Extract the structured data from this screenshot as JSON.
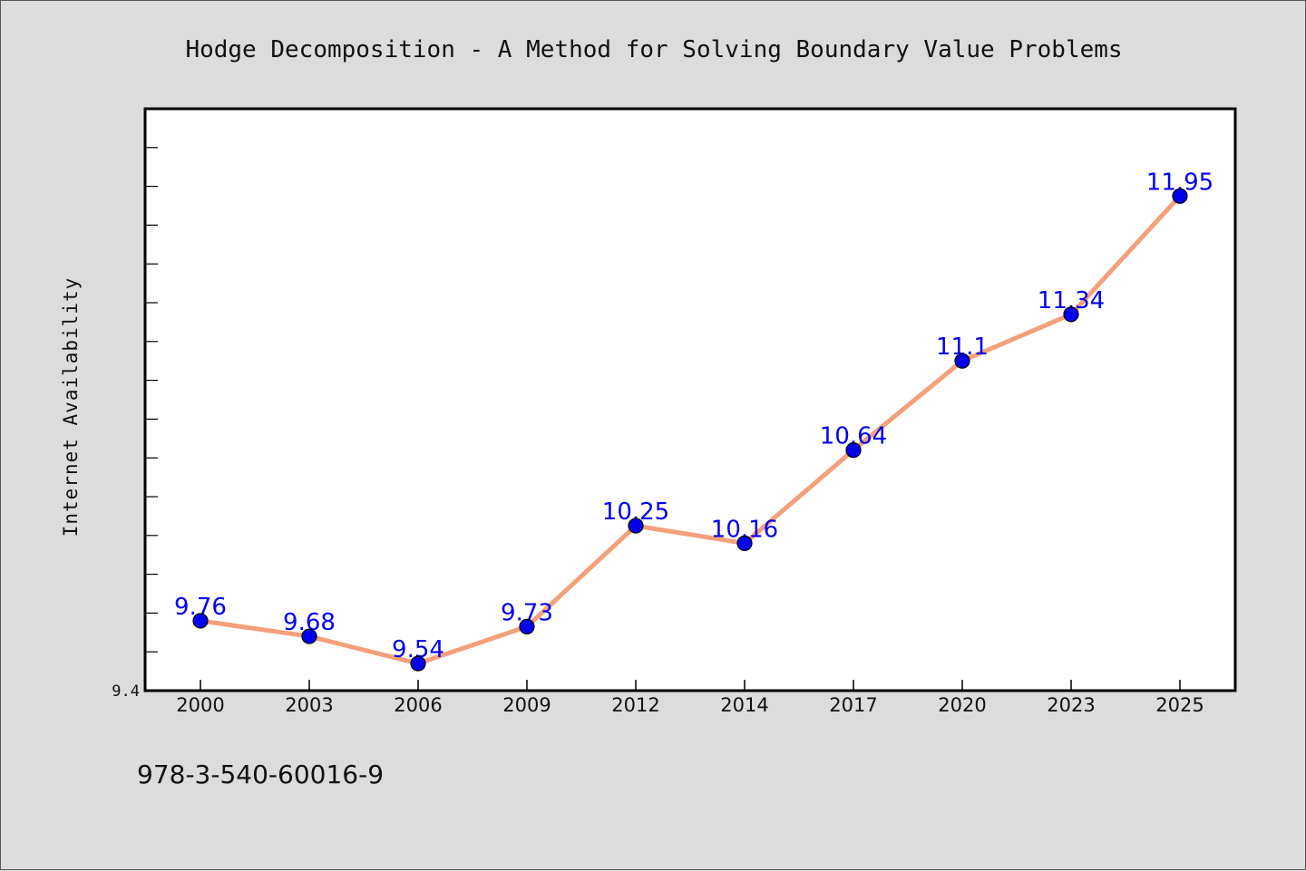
{
  "chart_data": {
    "type": "line",
    "title": "Hodge Decomposition - A Method for Solving Boundary Value Problems",
    "xlabel": "",
    "ylabel": "Internet Availability",
    "categories": [
      "2000",
      "2003",
      "2006",
      "2009",
      "2012",
      "2014",
      "2017",
      "2020",
      "2023",
      "2025"
    ],
    "series": [
      {
        "values": [
          9.76,
          9.68,
          9.54,
          9.73,
          10.25,
          10.16,
          10.64,
          11.1,
          11.34,
          11.95
        ]
      }
    ],
    "data_labels": [
      "9.76",
      "9.68",
      "9.54",
      "9.73",
      "10.25",
      "10.16",
      "10.64",
      "11.1",
      "11.34",
      "11.95"
    ],
    "ylim": [
      9.4,
      12.4
    ],
    "yticks": [
      "9.4"
    ],
    "grid": false,
    "legend": "none",
    "colors": {
      "line": "#f4a07a",
      "marker": "#0000ee",
      "label": "#0000ee",
      "background": "#dcdcdc",
      "plot_background": "#ffffff"
    }
  },
  "footer_code": "978-3-540-60016-9"
}
